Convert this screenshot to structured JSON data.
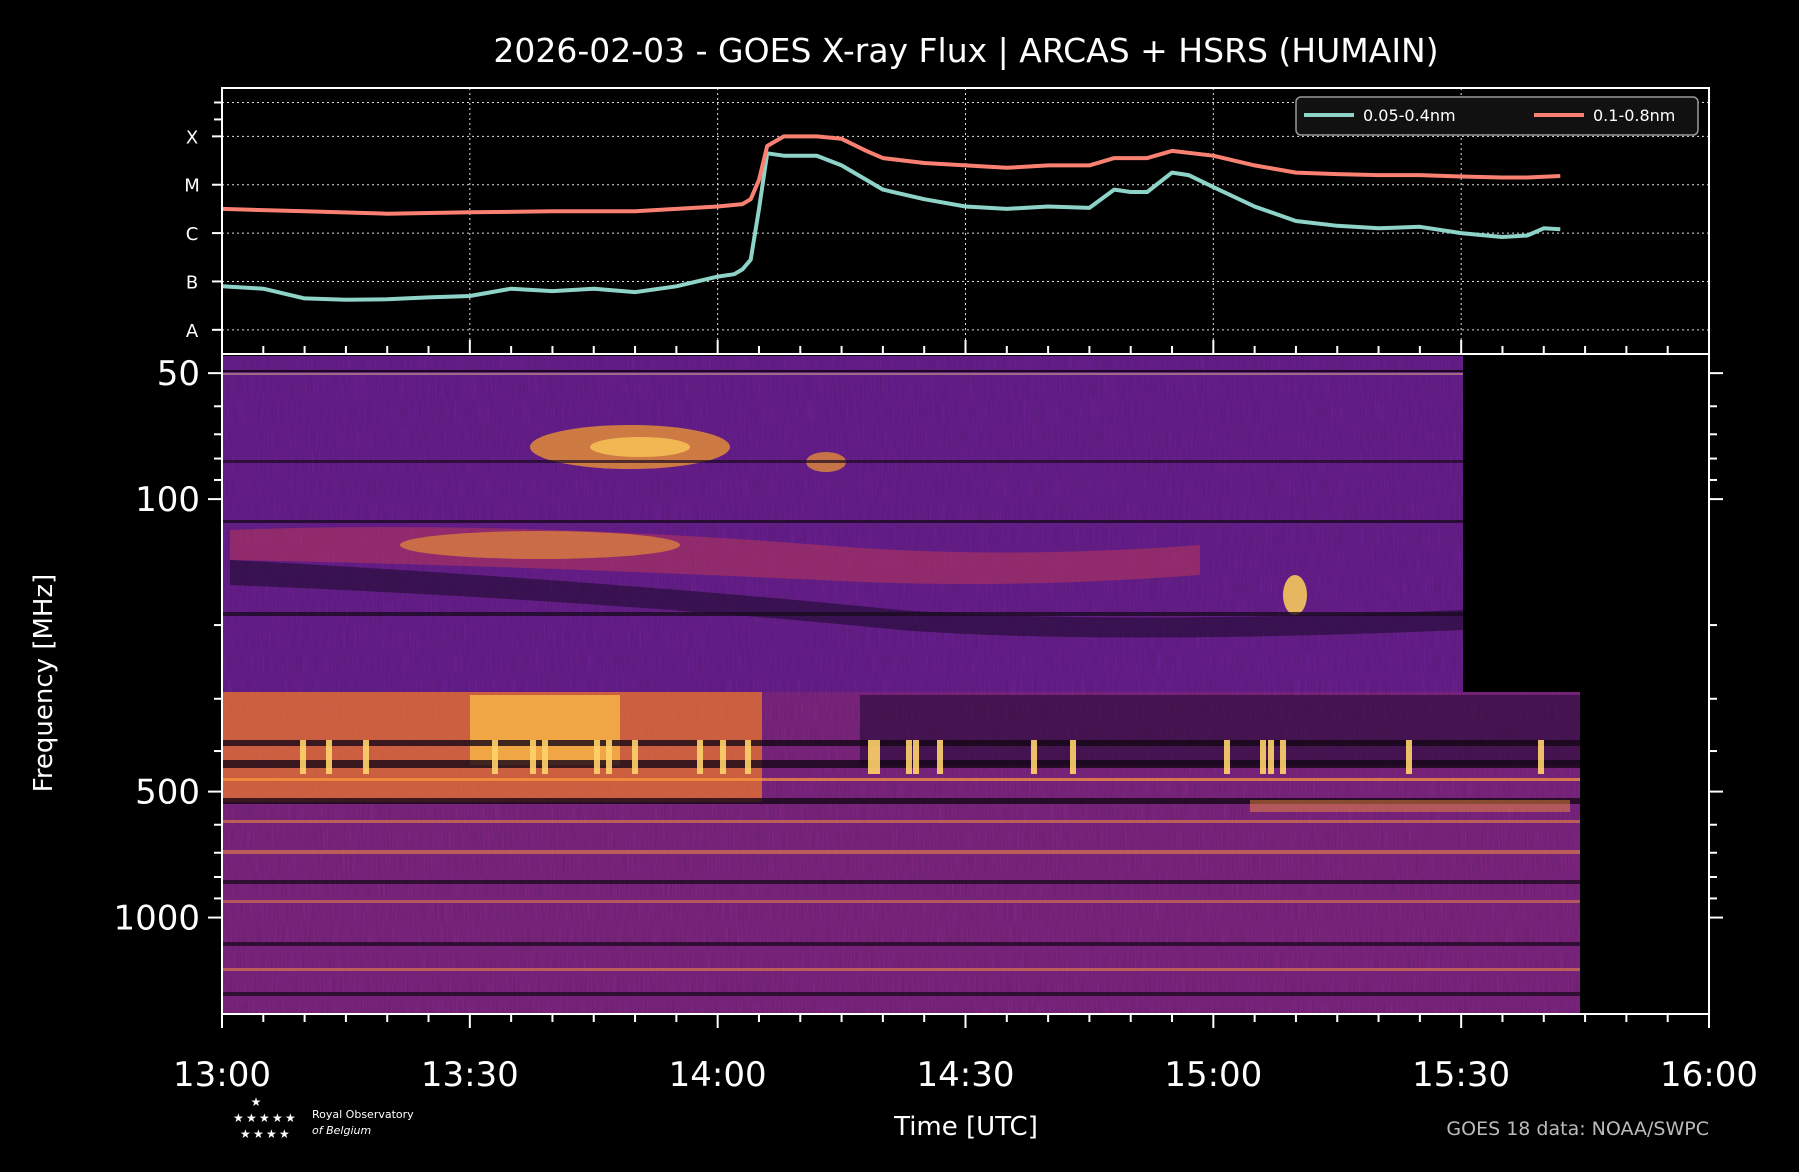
{
  "chart_data": [
    {
      "type": "line",
      "title": "2026-02-03 - GOES X-ray Flux | ARCAS + HSRS (HUMAIN)",
      "y_scale": "log",
      "y_tick_labels": [
        "A",
        "B",
        "C",
        "M",
        "X"
      ],
      "y_class_levels": [
        -8,
        -7,
        -6,
        -5,
        -4
      ],
      "ylim": [
        -8.5,
        -3.0
      ],
      "xlim": [
        "13:00",
        "16:00"
      ],
      "grid": true,
      "legend_position": "top-right",
      "series": [
        {
          "name": "0.05-0.4nm",
          "color": "#8dd3c7",
          "x": [
            "13:00",
            "13:05",
            "13:10",
            "13:15",
            "13:20",
            "13:25",
            "13:30",
            "13:35",
            "13:40",
            "13:45",
            "13:50",
            "13:55",
            "14:00",
            "14:02",
            "14:03",
            "14:04",
            "14:05",
            "14:06",
            "14:08",
            "14:12",
            "14:15",
            "14:18",
            "14:20",
            "14:25",
            "14:30",
            "14:35",
            "14:40",
            "14:45",
            "14:48",
            "14:50",
            "14:52",
            "14:55",
            "14:57",
            "15:00",
            "15:05",
            "15:10",
            "15:15",
            "15:20",
            "15:25",
            "15:30",
            "15:33",
            "15:35",
            "15:38",
            "15:40",
            "15:42"
          ],
          "y": [
            -7.1,
            -7.15,
            -7.35,
            -7.38,
            -7.37,
            -7.33,
            -7.3,
            -7.15,
            -7.2,
            -7.15,
            -7.22,
            -7.1,
            -6.9,
            -6.85,
            -6.75,
            -6.55,
            -5.5,
            -4.35,
            -4.4,
            -4.4,
            -4.6,
            -4.9,
            -5.1,
            -5.3,
            -5.45,
            -5.5,
            -5.45,
            -5.48,
            -5.1,
            -5.15,
            -5.15,
            -4.75,
            -4.8,
            -5.05,
            -5.45,
            -5.75,
            -5.85,
            -5.9,
            -5.87,
            -6.0,
            -6.05,
            -6.08,
            -6.05,
            -5.9,
            -5.92
          ]
        },
        {
          "name": "0.1-0.8nm",
          "color": "#fa8072",
          "x": [
            "13:00",
            "13:10",
            "13:20",
            "13:30",
            "13:40",
            "13:50",
            "14:00",
            "14:03",
            "14:04",
            "14:05",
            "14:06",
            "14:08",
            "14:12",
            "14:15",
            "14:18",
            "14:20",
            "14:25",
            "14:30",
            "14:35",
            "14:40",
            "14:45",
            "14:48",
            "14:50",
            "14:52",
            "14:55",
            "15:00",
            "15:05",
            "15:10",
            "15:15",
            "15:20",
            "15:25",
            "15:30",
            "15:35",
            "15:38",
            "15:42"
          ],
          "y": [
            -5.5,
            -5.55,
            -5.6,
            -5.57,
            -5.55,
            -5.55,
            -5.45,
            -5.4,
            -5.3,
            -4.9,
            -4.2,
            -4.0,
            -4.0,
            -4.05,
            -4.3,
            -4.45,
            -4.55,
            -4.6,
            -4.65,
            -4.6,
            -4.6,
            -4.45,
            -4.45,
            -4.45,
            -4.3,
            -4.4,
            -4.6,
            -4.75,
            -4.78,
            -4.8,
            -4.8,
            -4.83,
            -4.85,
            -4.85,
            -4.82
          ]
        }
      ]
    },
    {
      "type": "heatmap",
      "title": "",
      "xlabel": "Time [UTC]",
      "ylabel": "Frequency [MHz]",
      "x_ticks": [
        "13:00",
        "13:30",
        "14:00",
        "14:30",
        "15:00",
        "15:30",
        "16:00"
      ],
      "y_scale": "log",
      "y_ticks": [
        50,
        100,
        500,
        1000
      ],
      "ylim": [
        1700,
        45
      ],
      "colormap": "inferno",
      "bands": [
        {
          "name": "ARCAS",
          "freq_range_mhz": [
            45,
            280
          ],
          "time_range": [
            "13:00",
            "15:30"
          ]
        },
        {
          "name": "HSRS",
          "freq_range_mhz": [
            280,
            1700
          ],
          "time_range": [
            "13:00",
            "15:44"
          ]
        }
      ]
    }
  ],
  "footer": {
    "logo_line1": "Royal Observatory",
    "logo_line2": "of Belgium",
    "credit": "GOES 18 data: NOAA/SWPC"
  }
}
